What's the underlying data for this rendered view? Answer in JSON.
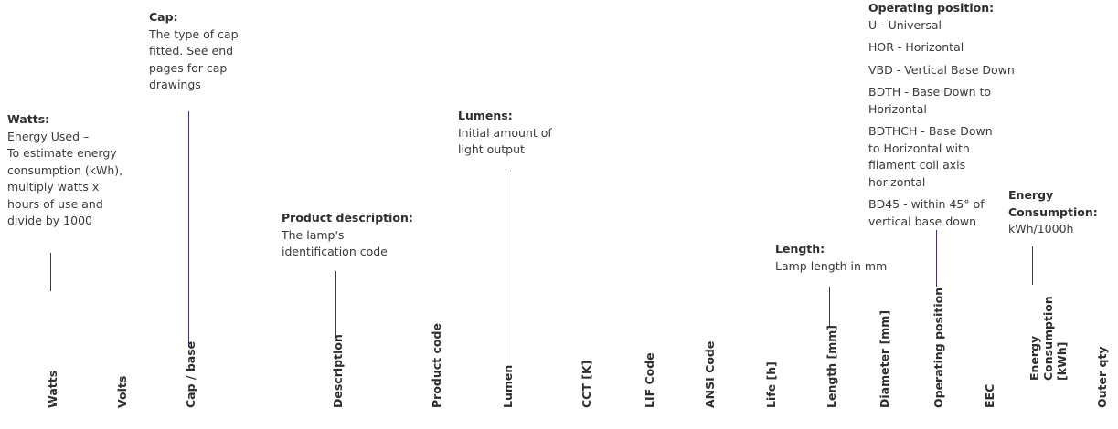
{
  "callouts": {
    "watts": {
      "title": "Watts:",
      "lines": [
        "Energy Used –",
        "To estimate energy",
        "consumption (kWh),",
        "multiply watts x",
        "hours of use and",
        "divide by 1000"
      ]
    },
    "cap": {
      "title": "Cap:",
      "lines": [
        "The type of cap",
        "fitted. See end",
        "pages for cap",
        "drawings"
      ]
    },
    "product_description": {
      "title": "Product description:",
      "lines": [
        "The lamp's",
        "identification code"
      ]
    },
    "lumens": {
      "title": "Lumens:",
      "lines": [
        "Initial amount of",
        "light output"
      ]
    },
    "length": {
      "title": "Length:",
      "lines": [
        "Lamp length in mm"
      ]
    },
    "operating_position": {
      "title": "Operating position:",
      "items": [
        "U - Universal",
        "HOR - Horizontal",
        "VBD - Vertical Base Down",
        "BDTH - Base Down to Horizontal",
        "BDTHCH - Base Down to Horizontal with filament coil axis horizontal",
        "BD45 - within 45° of vertical base down"
      ]
    },
    "energy_consumption": {
      "title": "Energy Consumption:",
      "lines": [
        "kWh/1000h"
      ]
    }
  },
  "columns": [
    "Watts",
    "Volts",
    "Cap / base",
    "Description",
    "Product code",
    "Lumen",
    "CCT [K]",
    "LIF Code",
    "ANSI Code",
    "Life [h]",
    "Length [mm]",
    "Diameter [mm]",
    "Operating position",
    "EEC",
    "Energy Consumption [kWh]",
    "Outer qty"
  ],
  "colors": {
    "connector": "#3d2f7a",
    "text": "#3a3a3a"
  }
}
